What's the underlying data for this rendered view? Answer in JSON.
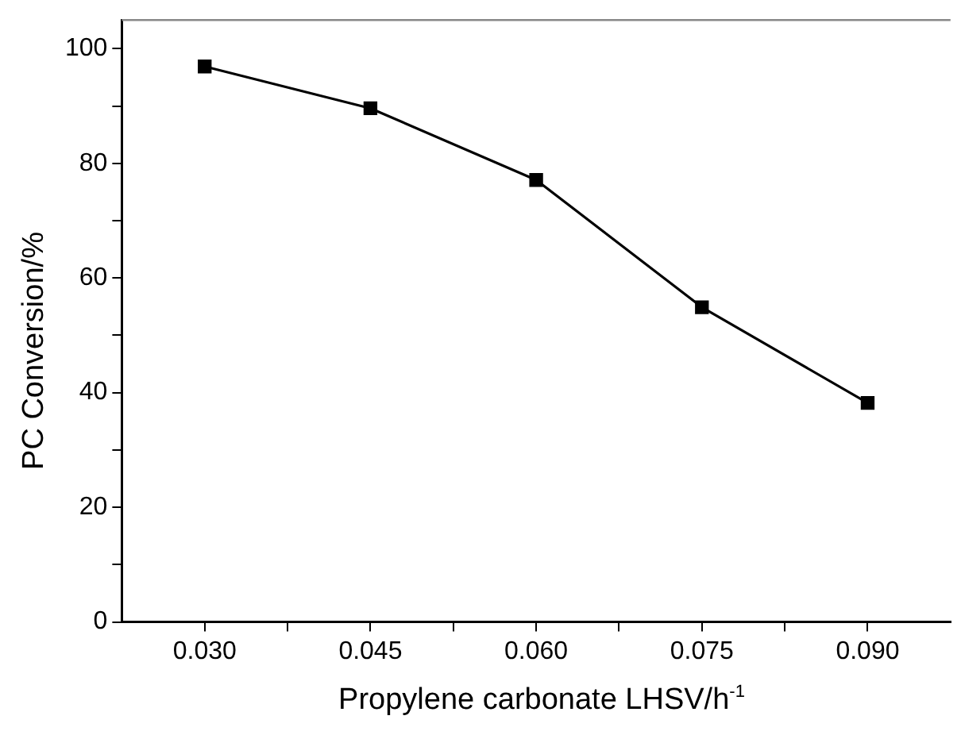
{
  "chart_data": {
    "type": "line",
    "xlabel": "Propylene carbonate LHSV/h$^{-1}$",
    "ylabel": "PC Conversion/%",
    "x": [
      0.03,
      0.045,
      0.06,
      0.075,
      0.09
    ],
    "series": [
      {
        "color": "#000000",
        "values": [
          96.9,
          89.6,
          77.1,
          54.9,
          38.2
        ]
      }
    ],
    "xlim": [
      0.0225,
      0.0975
    ],
    "xticks": [
      {
        "value": 0.03,
        "label": "0.030"
      },
      {
        "value": 0.0375,
        "label": null
      },
      {
        "value": 0.045,
        "label": "0.045"
      },
      {
        "value": 0.0525,
        "label": null
      },
      {
        "value": 0.06,
        "label": "0.060"
      },
      {
        "value": 0.0675,
        "label": null
      },
      {
        "value": 0.075,
        "label": "0.075"
      },
      {
        "value": 0.0825,
        "label": null
      },
      {
        "value": 0.09,
        "label": "0.090"
      }
    ],
    "ylim": [
      0,
      105
    ],
    "yticks": [
      0,
      {
        "value": 10,
        "label": null
      },
      20,
      {
        "value": 30,
        "label": null
      },
      40,
      {
        "value": 50,
        "label": null
      },
      60,
      {
        "value": 70,
        "label": null
      },
      80,
      {
        "value": 90,
        "label": null
      },
      100
    ],
    "grid": false,
    "legend": false,
    "marker": "square",
    "line_style": "solid"
  }
}
